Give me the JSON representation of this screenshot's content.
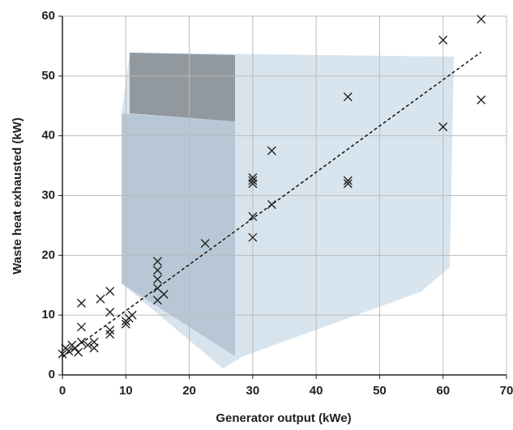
{
  "chart_data": {
    "type": "scatter",
    "xlabel": "Generator output (kWe)",
    "ylabel": "Waste heat exhausted (kW)",
    "xlim": [
      0,
      70
    ],
    "ylim": [
      0,
      60
    ],
    "xticks": [
      0,
      10,
      20,
      30,
      40,
      50,
      60,
      70
    ],
    "yticks": [
      0,
      10,
      20,
      30,
      40,
      50,
      60
    ],
    "grid": true,
    "marker": "x",
    "color": "#222222",
    "x": [
      0,
      0.5,
      1,
      1.5,
      2,
      2.5,
      3,
      3,
      3,
      4,
      5,
      5,
      6,
      7.5,
      7.5,
      7.5,
      7.5,
      10,
      10,
      10.5,
      11,
      15,
      15,
      15,
      15,
      15,
      16,
      22.5,
      30,
      30,
      30,
      30,
      30,
      33,
      33,
      45,
      45,
      45,
      60,
      60,
      66,
      66
    ],
    "y": [
      3.5,
      4.5,
      4,
      5,
      4.5,
      3.8,
      5.5,
      8,
      12,
      5,
      4.5,
      5.5,
      12.7,
      14,
      10.5,
      7.5,
      6.8,
      8.5,
      9,
      9.5,
      10,
      19,
      17.5,
      16,
      14.5,
      12.5,
      13.5,
      22,
      33,
      32.5,
      32,
      26.5,
      23,
      28.5,
      37.5,
      46.5,
      32.5,
      32,
      56,
      41.5,
      59.5,
      46
    ],
    "trendline": {
      "x": [
        0,
        66
      ],
      "y": [
        3,
        54
      ],
      "color": "#111111"
    }
  }
}
